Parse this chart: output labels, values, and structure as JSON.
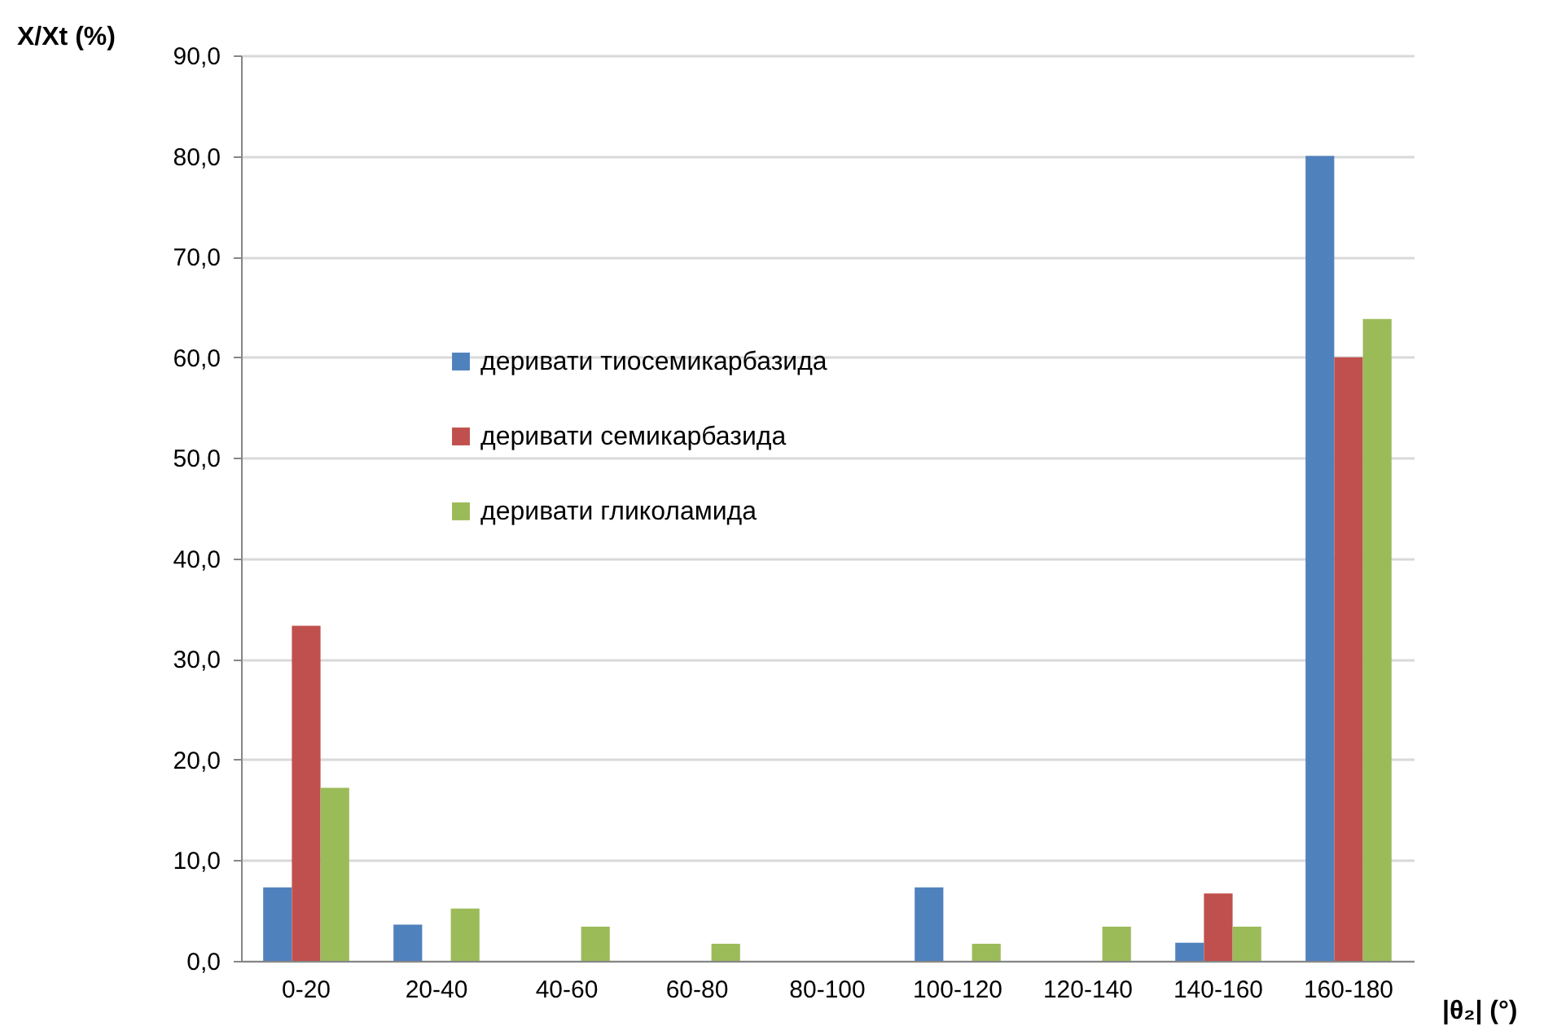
{
  "chart_data": {
    "type": "bar",
    "ylabel": "X/Xt (%)",
    "xlabel": "|θ₂| (°)",
    "categories": [
      "0-20",
      "20-40",
      "40-60",
      "60-80",
      "80-100",
      "100-120",
      "120-140",
      "140-160",
      "160-180"
    ],
    "series": [
      {
        "name": "деривати тиосемикарбазида",
        "color": "#4f81bd",
        "values": [
          7.3,
          3.6,
          0,
          0,
          0,
          7.3,
          0,
          1.8,
          80.0
        ]
      },
      {
        "name": "деривати семикарбазида",
        "color": "#c0504d",
        "values": [
          33.3,
          0,
          0,
          0,
          0,
          0,
          0,
          6.7,
          60.0
        ]
      },
      {
        "name": "деривати гликоламида",
        "color": "#9bbb59",
        "values": [
          17.2,
          5.2,
          3.4,
          1.7,
          0,
          1.7,
          3.4,
          3.4,
          63.8
        ]
      }
    ],
    "ylim": [
      0,
      90
    ],
    "yticks": [
      {
        "value": 0,
        "label": "0,0"
      },
      {
        "value": 10,
        "label": "10,0"
      },
      {
        "value": 20,
        "label": "20,0"
      },
      {
        "value": 30,
        "label": "30,0"
      },
      {
        "value": 40,
        "label": "40,0"
      },
      {
        "value": 50,
        "label": "50,0"
      },
      {
        "value": 60,
        "label": "60,0"
      },
      {
        "value": 70,
        "label": "70,0"
      },
      {
        "value": 80,
        "label": "80,0"
      },
      {
        "value": 90,
        "label": "90,0"
      }
    ],
    "grid": "y",
    "legend": "center"
  }
}
